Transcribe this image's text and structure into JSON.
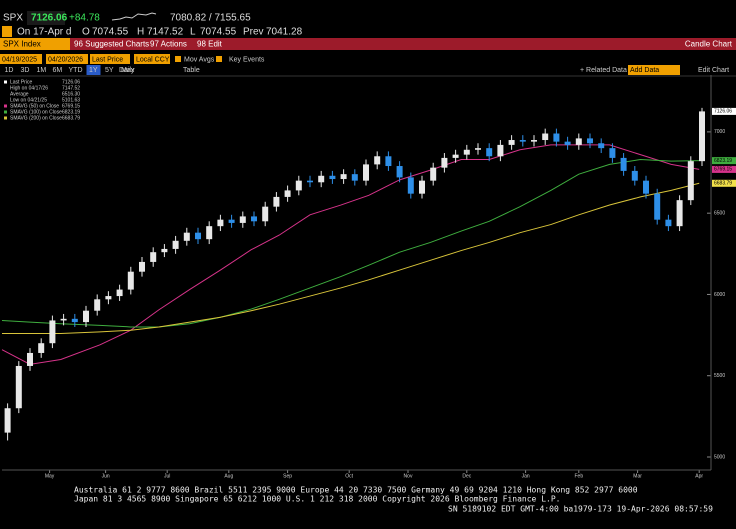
{
  "header": {
    "ticker": "SPX",
    "last": "7126.06",
    "change": "+84.78",
    "range": "7080.82 / 7155.65",
    "quote_line": {
      "date": "On 17-Apr d",
      "open_label": "O",
      "open": "7074.55",
      "high_label": "H",
      "high": "7147.52",
      "low_label": "L",
      "low": "7074.55",
      "prev_label": "Prev",
      "prev": "7041.28"
    }
  },
  "toolbar": {
    "security": "SPX Index",
    "menu": [
      "96 Suggested Charts",
      "97 Actions",
      "98 Edit"
    ],
    "chart_name": "Candle Chart"
  },
  "controls": {
    "start": "04/19/2025",
    "end": "04/20/2026",
    "field": "Last Price",
    "currency": "Local CCY",
    "mov_avgs": "Mov Avgs",
    "key_events": "Key Events",
    "related": "+ Related Data",
    "add_data": "Add Data",
    "edit_chart": "Edit Chart",
    "periods": [
      "1D",
      "3D",
      "1M",
      "6M",
      "YTD",
      "1Y",
      "5Y",
      "Max"
    ],
    "selected_period": 5,
    "frequency": "Daily",
    "table": "Table"
  },
  "chart_data": {
    "type": "candlestick",
    "up_color": "#e8e8e8",
    "down_color": "#2e8fe8",
    "legend": [
      {
        "label": "Last Price",
        "value": "7126.06"
      },
      {
        "label": "High on 04/17/26",
        "value": "7147.52"
      },
      {
        "label": "Average",
        "value": "6516.30"
      },
      {
        "label": "Low on 04/21/25",
        "value": "5101.63"
      }
    ],
    "xlim": [
      0,
      252
    ],
    "xticks": [
      {
        "value": 17,
        "label": "May"
      },
      {
        "value": 37,
        "label": "Jun"
      },
      {
        "value": 59,
        "label": "Jul"
      },
      {
        "value": 81,
        "label": "Aug"
      },
      {
        "value": 102,
        "label": "Sep"
      },
      {
        "value": 124,
        "label": "Oct"
      },
      {
        "value": 145,
        "label": "Nov"
      },
      {
        "value": 166,
        "label": "Dec"
      },
      {
        "value": 187,
        "label": "Jan"
      },
      {
        "value": 206,
        "label": "Feb"
      },
      {
        "value": 227,
        "label": "Mar"
      },
      {
        "value": 249,
        "label": "Apr"
      }
    ],
    "ylim": [
      4920,
      7350
    ],
    "yticks": [
      5000,
      5500,
      6000,
      6500,
      7000
    ],
    "candles": {
      "x": [
        2,
        6,
        10,
        14,
        18,
        22,
        26,
        30,
        34,
        38,
        42,
        46,
        50,
        54,
        58,
        62,
        66,
        70,
        74,
        78,
        82,
        86,
        90,
        94,
        98,
        102,
        106,
        110,
        114,
        118,
        122,
        126,
        130,
        134,
        138,
        142,
        146,
        150,
        154,
        158,
        162,
        166,
        170,
        174,
        178,
        182,
        186,
        190,
        194,
        198,
        202,
        206,
        210,
        214,
        218,
        222,
        226,
        230,
        234,
        238,
        242,
        246,
        250
      ],
      "open": [
        5150,
        5300,
        5560,
        5640,
        5700,
        5840,
        5850,
        5830,
        5900,
        5970,
        5990,
        6030,
        6140,
        6200,
        6260,
        6280,
        6330,
        6380,
        6340,
        6420,
        6460,
        6440,
        6480,
        6450,
        6540,
        6600,
        6640,
        6700,
        6690,
        6730,
        6710,
        6740,
        6700,
        6800,
        6850,
        6790,
        6720,
        6620,
        6700,
        6780,
        6840,
        6860,
        6890,
        6900,
        6850,
        6920,
        6950,
        6940,
        6950,
        6990,
        6940,
        6920,
        6960,
        6930,
        6900,
        6840,
        6760,
        6700,
        6620,
        6460,
        6420,
        6580,
        6820
      ],
      "high": [
        5330,
        5590,
        5670,
        5730,
        5870,
        5880,
        5880,
        5930,
        6000,
        6020,
        6060,
        6170,
        6230,
        6290,
        6310,
        6360,
        6410,
        6410,
        6450,
        6490,
        6490,
        6510,
        6510,
        6570,
        6630,
        6670,
        6730,
        6730,
        6760,
        6760,
        6770,
        6770,
        6830,
        6880,
        6880,
        6820,
        6750,
        6730,
        6810,
        6870,
        6890,
        6920,
        6930,
        6930,
        6950,
        6980,
        6980,
        6980,
        7020,
        7020,
        6970,
        6990,
        6990,
        6960,
        6930,
        6870,
        6790,
        6730,
        6650,
        6490,
        6610,
        6850,
        7147.52
      ],
      "low": [
        5101.63,
        5270,
        5530,
        5610,
        5670,
        5810,
        5800,
        5800,
        5870,
        5940,
        5960,
        6000,
        6110,
        6170,
        6230,
        6250,
        6300,
        6310,
        6310,
        6390,
        6410,
        6410,
        6420,
        6420,
        6510,
        6570,
        6610,
        6660,
        6660,
        6680,
        6680,
        6670,
        6670,
        6770,
        6760,
        6690,
        6590,
        6590,
        6670,
        6750,
        6810,
        6830,
        6860,
        6820,
        6820,
        6890,
        6910,
        6910,
        6920,
        6910,
        6890,
        6890,
        6900,
        6870,
        6810,
        6730,
        6670,
        6590,
        6430,
        6390,
        6390,
        6550,
        6790
      ],
      "close": [
        5300,
        5560,
        5640,
        5700,
        5840,
        5850,
        5830,
        5900,
        5970,
        5990,
        6030,
        6140,
        6200,
        6260,
        6280,
        6330,
        6380,
        6340,
        6420,
        6460,
        6440,
        6480,
        6450,
        6540,
        6600,
        6640,
        6700,
        6690,
        6730,
        6710,
        6740,
        6700,
        6800,
        6850,
        6790,
        6720,
        6620,
        6700,
        6780,
        6840,
        6860,
        6890,
        6900,
        6850,
        6920,
        6950,
        6940,
        6950,
        6990,
        6940,
        6920,
        6960,
        6930,
        6900,
        6840,
        6760,
        6700,
        6620,
        6460,
        6420,
        6580,
        6820,
        7126.06
      ]
    },
    "series": [
      {
        "name": "SMAVG (50) on Close",
        "legend_value": "6769.15",
        "color": "#d6338a",
        "x": [
          0,
          10,
          21,
          35,
          46,
          56,
          67,
          78,
          89,
          99,
          110,
          121,
          131,
          142,
          153,
          164,
          174,
          185,
          196,
          206,
          217,
          228,
          239,
          249
        ],
        "values": [
          5660,
          5570,
          5600,
          5690,
          5780,
          5905,
          6030,
          6150,
          6275,
          6365,
          6490,
          6550,
          6610,
          6705,
          6765,
          6830,
          6830,
          6890,
          6920,
          6920,
          6920,
          6860,
          6800,
          6769.15
        ]
      },
      {
        "name": "SMAVG (100) on Close",
        "legend_value": "6823.19",
        "color": "#3fae3f",
        "x": [
          0,
          10,
          21,
          35,
          46,
          56,
          67,
          78,
          89,
          99,
          110,
          121,
          131,
          142,
          153,
          164,
          174,
          185,
          196,
          206,
          217,
          228,
          239,
          249
        ],
        "values": [
          5840,
          5830,
          5820,
          5810,
          5800,
          5800,
          5820,
          5860,
          5910,
          5970,
          6040,
          6110,
          6180,
          6260,
          6320,
          6390,
          6450,
          6540,
          6640,
          6740,
          6800,
          6830,
          6820,
          6823.19
        ]
      },
      {
        "name": "SMAVG (200) on Close",
        "legend_value": "6683.79",
        "color": "#d8c43a",
        "x": [
          0,
          10,
          21,
          35,
          46,
          56,
          67,
          78,
          89,
          99,
          110,
          121,
          131,
          142,
          153,
          164,
          174,
          185,
          196,
          206,
          217,
          228,
          239,
          249
        ],
        "values": [
          5760,
          5760,
          5760,
          5770,
          5780,
          5800,
          5830,
          5860,
          5900,
          5940,
          5990,
          6040,
          6090,
          6150,
          6210,
          6270,
          6320,
          6380,
          6430,
          6490,
          6550,
          6600,
          6640,
          6683.79
        ]
      }
    ],
    "value_tags": [
      {
        "value": 7126.06,
        "color": "#ffffff"
      },
      {
        "value": 6823.19,
        "color": "#3fae3f"
      },
      {
        "value": 6769.15,
        "color": "#d6338a"
      },
      {
        "value": 6683.79,
        "color": "#f2e04a"
      }
    ]
  },
  "footer": [
    "Australia 61 2 9777 8600 Brazil 5511 2395 9000 Europe 44 20 7330 7500 Germany 49 69 9204 1210 Hong Kong 852 2977 6000",
    "Japan 81 3 4565 8900      Singapore 65 6212 1000      U.S. 1 212 318 2000          Copyright 2026 Bloomberg Finance L.P.",
    "SN 5189102 EDT  GMT-4:00 ba1979-173 19-Apr-2026 08:57:59"
  ]
}
